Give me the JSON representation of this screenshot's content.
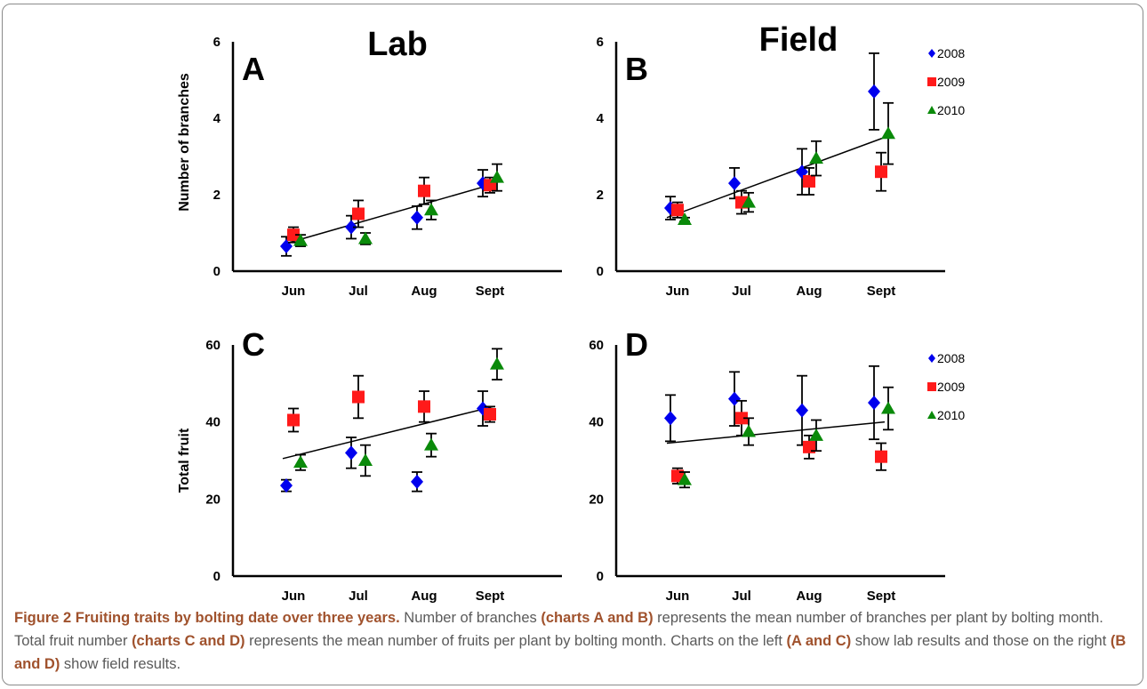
{
  "chart_data": [
    {
      "type": "scatter",
      "panel_label": "A",
      "title": "Lab",
      "ylabel": "Number of branches",
      "xlabel": "",
      "categories": [
        "Jun",
        "Jul",
        "Aug",
        "Sept"
      ],
      "ylim": [
        0,
        6
      ],
      "yticks": [
        0,
        2,
        4,
        6
      ],
      "grid": false,
      "legend": null,
      "series": [
        {
          "name": "2008",
          "values": [
            0.65,
            1.15,
            1.4,
            2.3
          ],
          "err": [
            0.25,
            0.3,
            0.3,
            0.35
          ]
        },
        {
          "name": "2009",
          "values": [
            0.95,
            1.5,
            2.1,
            2.25
          ],
          "err": [
            0.2,
            0.35,
            0.35,
            0.2
          ]
        },
        {
          "name": "2010",
          "values": [
            0.8,
            0.85,
            1.6,
            2.45
          ],
          "err": [
            0.15,
            0.15,
            0.25,
            0.35
          ]
        }
      ],
      "trendline": {
        "x_from": 0,
        "x_to": 3,
        "y_from": 0.7,
        "y_to": 2.28
      }
    },
    {
      "type": "scatter",
      "panel_label": "B",
      "title": "Field",
      "ylabel": "",
      "xlabel": "",
      "categories": [
        "Jun",
        "Jul",
        "Aug",
        "Sept"
      ],
      "ylim": [
        0,
        6
      ],
      "yticks": [
        0,
        2,
        4,
        6
      ],
      "grid": false,
      "legend": "top-right",
      "series": [
        {
          "name": "2008",
          "values": [
            1.65,
            2.3,
            2.6,
            4.7
          ],
          "err": [
            0.3,
            0.4,
            0.6,
            1.0
          ]
        },
        {
          "name": "2009",
          "values": [
            1.6,
            1.8,
            2.35,
            2.6
          ],
          "err": [
            0.2,
            0.3,
            0.35,
            0.5
          ]
        },
        {
          "name": "2010",
          "values": [
            1.35,
            1.8,
            2.95,
            3.6
          ],
          "err": [
            0.05,
            0.25,
            0.45,
            0.8
          ]
        }
      ],
      "trendline": {
        "x_from": 0,
        "x_to": 3,
        "y_from": 1.4,
        "y_to": 3.5
      }
    },
    {
      "type": "scatter",
      "panel_label": "C",
      "title": "",
      "ylabel": "Total fruit",
      "xlabel": "",
      "categories": [
        "Jun",
        "Jul",
        "Aug",
        "Sept"
      ],
      "ylim": [
        0,
        60
      ],
      "yticks": [
        0,
        20,
        40,
        60
      ],
      "grid": false,
      "legend": null,
      "series": [
        {
          "name": "2008",
          "values": [
            23.5,
            32,
            24.5,
            43.5
          ],
          "err": [
            1.5,
            4,
            2.5,
            4.5
          ]
        },
        {
          "name": "2009",
          "values": [
            40.5,
            46.5,
            44,
            42
          ],
          "err": [
            3,
            5.5,
            4,
            2
          ]
        },
        {
          "name": "2010",
          "values": [
            29.5,
            30,
            34,
            55
          ],
          "err": [
            2,
            4,
            3,
            4
          ]
        }
      ],
      "trendline": {
        "x_from": 0,
        "x_to": 3,
        "y_from": 30.5,
        "y_to": 44
      }
    },
    {
      "type": "scatter",
      "panel_label": "D",
      "title": "",
      "ylabel": "",
      "xlabel": "",
      "categories": [
        "Jun",
        "Jul",
        "Aug",
        "Sept"
      ],
      "ylim": [
        0,
        60
      ],
      "yticks": [
        0,
        20,
        40,
        60
      ],
      "grid": false,
      "legend": "top-right",
      "series": [
        {
          "name": "2008",
          "values": [
            41,
            46,
            43,
            45
          ],
          "err": [
            6,
            7,
            9,
            9.5
          ]
        },
        {
          "name": "2009",
          "values": [
            26,
            41,
            33.5,
            31
          ],
          "err": [
            2,
            4.5,
            3,
            3.5
          ]
        },
        {
          "name": "2010",
          "values": [
            25,
            37.5,
            36.5,
            43.5
          ],
          "err": [
            2,
            3.5,
            4,
            5.5
          ]
        }
      ],
      "trendline": {
        "x_from": 0,
        "x_to": 3,
        "y_from": 34.5,
        "y_to": 40
      }
    }
  ],
  "series_styles": {
    "2008": {
      "color": "#0000ee",
      "marker": "diamond"
    },
    "2009": {
      "color": "#ff1a1a",
      "marker": "square"
    },
    "2010": {
      "color": "#0a8a0a",
      "marker": "triangle"
    }
  },
  "legend_entries": [
    "2008",
    "2009",
    "2010"
  ],
  "caption": {
    "figure_label": "Figure 2",
    "title": "Fruiting traits by bolting date over three years.",
    "text_1": " Number of branches ",
    "ref_1": "(charts A and B)",
    "text_2": " represents the mean number of branches per plant by bolting month. Total fruit number ",
    "ref_2": "(charts C and D)",
    "text_3": " represents the mean number of fruits per plant by bolting month. Charts on the left ",
    "ref_3": "(A and C)",
    "text_4": " show lab results and those on the right ",
    "ref_4": "(B and D)",
    "text_5": " show field results."
  }
}
